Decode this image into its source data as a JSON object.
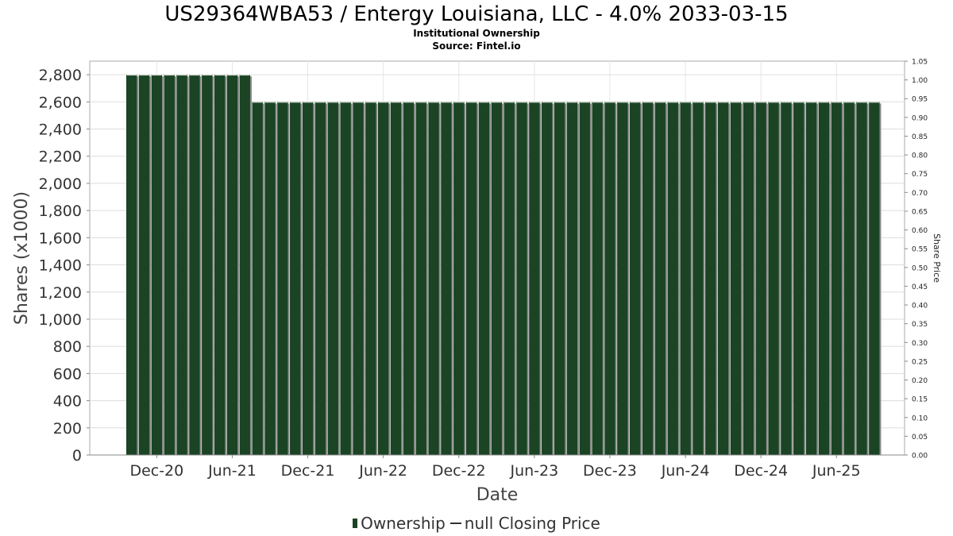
{
  "chart_data": {
    "type": "bar",
    "title": "US29364WBA53 / Entergy Louisiana, LLC - 4.0% 2033-03-15",
    "subtitles": [
      "Institutional Ownership",
      "Source: Fintel.io"
    ],
    "xlabel": "Date",
    "ylabel": "Shares (x1000)",
    "y2label": "Share Price",
    "ylim": [
      0,
      2900
    ],
    "y2lim": [
      0,
      1.05
    ],
    "yticks": [
      0,
      200,
      400,
      600,
      800,
      1000,
      1200,
      1400,
      1600,
      1800,
      2000,
      2200,
      2400,
      2600,
      2800
    ],
    "ytick_labels": [
      "0",
      "200",
      "400",
      "600",
      "800",
      "1,000",
      "1,200",
      "1,400",
      "1,600",
      "1,800",
      "2,000",
      "2,200",
      "2,400",
      "2,600",
      "2,800"
    ],
    "y2ticks": [
      0,
      0.05,
      0.1,
      0.15,
      0.2,
      0.25,
      0.3,
      0.35,
      0.4,
      0.45,
      0.5,
      0.55,
      0.6,
      0.65,
      0.7,
      0.75,
      0.8,
      0.85,
      0.9,
      0.95,
      1.0,
      1.05
    ],
    "y2tick_labels": [
      "0.00",
      "0.05",
      "0.10",
      "0.15",
      "0.20",
      "0.25",
      "0.30",
      "0.35",
      "0.40",
      "0.45",
      "0.50",
      "0.55",
      "0.60",
      "0.65",
      "0.70",
      "0.75",
      "0.80",
      "0.85",
      "0.90",
      "0.95",
      "1.00",
      "1.05"
    ],
    "xtick_labels": [
      "Dec-20",
      "Jun-21",
      "Dec-21",
      "Jun-22",
      "Dec-22",
      "Jun-23",
      "Dec-23",
      "Jun-24",
      "Dec-24",
      "Jun-25"
    ],
    "series": [
      {
        "name": "Ownership",
        "type": "bar",
        "color": "#1a4423",
        "values": [
          2800,
          2800,
          2800,
          2800,
          2800,
          2800,
          2800,
          2800,
          2800,
          2800,
          2600,
          2600,
          2600,
          2600,
          2600,
          2600,
          2600,
          2600,
          2600,
          2600,
          2600,
          2600,
          2600,
          2600,
          2600,
          2600,
          2600,
          2600,
          2600,
          2600,
          2600,
          2600,
          2600,
          2600,
          2600,
          2600,
          2600,
          2600,
          2600,
          2600,
          2600,
          2600,
          2600,
          2600,
          2600,
          2600,
          2600,
          2600,
          2600,
          2600,
          2600,
          2600,
          2600,
          2600,
          2600,
          2600,
          2600,
          2600,
          2600,
          2600
        ]
      },
      {
        "name": "null Closing Price",
        "type": "line",
        "color": "#333333",
        "values": []
      }
    ],
    "grid": true,
    "legend_position": "bottom"
  }
}
